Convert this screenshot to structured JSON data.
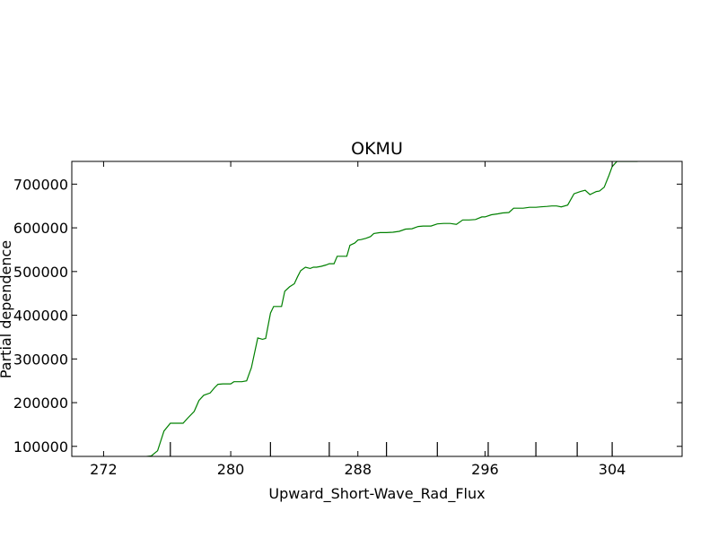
{
  "chart_data": {
    "type": "line",
    "title": "OKMU",
    "xlabel": "Upward_Short-Wave_Rad_Flux",
    "ylabel": "Partial dependence",
    "xlim": [
      270,
      308.4
    ],
    "ylim": [
      77000,
      752000
    ],
    "xticks": [
      272,
      280,
      288,
      296,
      304
    ],
    "yticks": [
      100000,
      200000,
      300000,
      400000,
      500000,
      600000,
      700000
    ],
    "xtick_labels": [
      "272",
      "280",
      "288",
      "296",
      "304"
    ],
    "ytick_labels": [
      "100000",
      "200000",
      "300000",
      "400000",
      "500000",
      "600000",
      "700000"
    ],
    "rug": [
      276.2,
      282.5,
      286.2,
      289.8,
      293.0,
      296.2,
      299.2,
      301.8,
      304.0
    ],
    "grid": false,
    "line_color": "#008000",
    "series": [
      {
        "values_x": [
          270.0,
          274.5,
          275.0,
          275.4,
          275.8,
          276.2,
          276.6,
          277.0,
          277.3,
          277.7,
          278.0,
          278.3,
          278.7,
          279.0,
          279.2,
          279.5,
          279.7,
          280.0,
          280.2,
          280.5,
          280.7,
          281.0,
          281.2,
          281.3,
          281.7,
          282.0,
          282.2,
          282.5,
          282.7,
          283.0,
          283.2,
          283.4,
          283.7,
          284.0,
          284.2,
          284.4,
          284.7,
          285.0,
          285.2,
          285.4,
          285.7,
          286.0,
          286.2,
          286.5,
          286.7,
          287.0,
          287.3,
          287.5,
          287.8,
          288.0,
          288.2,
          288.5,
          288.8,
          289.0,
          289.4,
          289.8,
          290.2,
          290.6,
          291.0,
          291.4,
          291.8,
          292.1,
          292.6,
          293.0,
          293.4,
          293.8,
          294.2,
          294.6,
          295.0,
          295.4,
          295.8,
          296.0,
          296.4,
          296.8,
          297.1,
          297.5,
          297.8,
          298.0,
          298.4,
          298.8,
          299.2,
          299.5,
          299.9,
          300.2,
          300.5,
          300.8,
          301.2,
          301.6,
          302.0,
          302.3,
          302.6,
          303.0,
          303.2,
          303.5,
          303.8,
          304.0,
          304.3,
          304.6,
          305.0,
          305.3,
          305.6
        ],
        "values_y": [
          75000,
          76000,
          78000,
          90000,
          135000,
          153000,
          153000,
          153000,
          165000,
          180000,
          205000,
          217000,
          222000,
          235000,
          242000,
          243000,
          243000,
          243000,
          248000,
          248000,
          248000,
          250000,
          270000,
          280000,
          348000,
          345000,
          347000,
          405000,
          420000,
          420000,
          420000,
          455000,
          465000,
          472000,
          488000,
          502000,
          510000,
          507000,
          510000,
          510000,
          512000,
          515000,
          518000,
          518000,
          535000,
          535000,
          535000,
          560000,
          565000,
          572000,
          573000,
          576000,
          580000,
          587000,
          589000,
          589000,
          590000,
          592000,
          597000,
          598000,
          603000,
          604000,
          604000,
          609000,
          610000,
          610000,
          608000,
          618000,
          618000,
          619000,
          625000,
          625000,
          630000,
          632000,
          634000,
          635000,
          645000,
          645000,
          645000,
          647000,
          647000,
          648000,
          649000,
          650000,
          650000,
          648000,
          652000,
          678000,
          683000,
          686000,
          676000,
          683000,
          684000,
          693000,
          720000,
          740000,
          752000,
          752000,
          752000,
          752000,
          752000
        ]
      }
    ]
  }
}
